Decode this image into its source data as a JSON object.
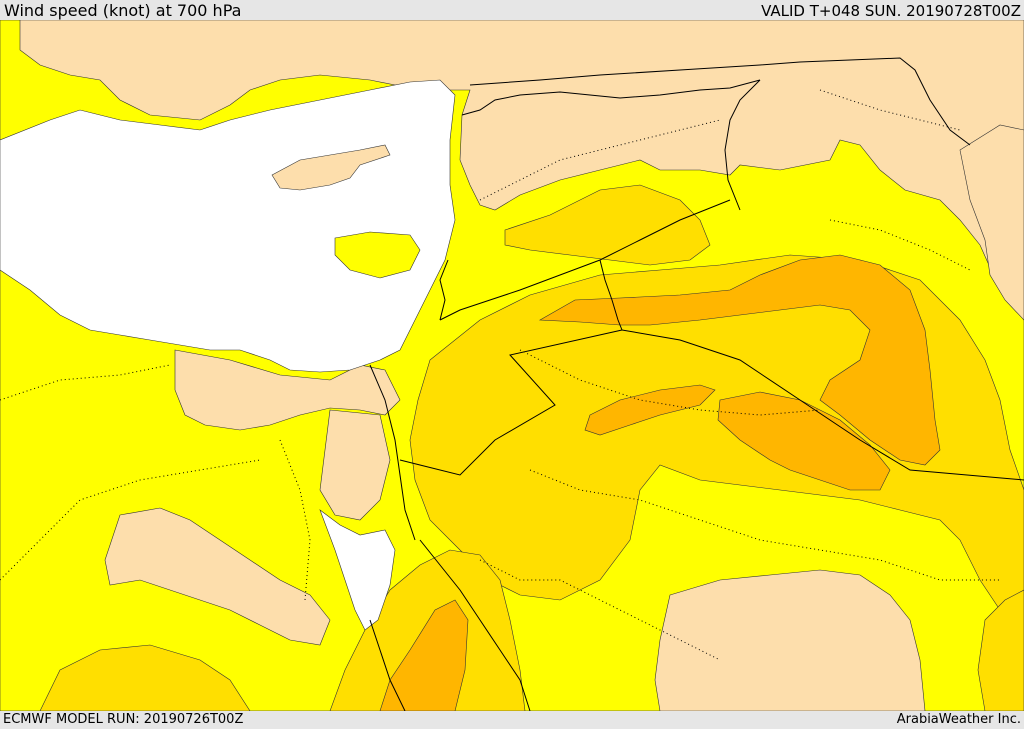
{
  "header": {
    "title": "Wind speed (knot) at 700 hPa",
    "valid": "VALID T+048 SUN. 20190728T00Z"
  },
  "footer": {
    "model_run": "ECMWF MODEL RUN: 20190726T00Z",
    "credit": "ArabiaWeather Inc."
  },
  "colors": {
    "sea": "#ffffff",
    "land_calm": "#fddeac",
    "band_1": "#ffff00",
    "band_2": "#ffdf00",
    "band_3": "#ffb600",
    "borders": "#000000",
    "frame": "#e6e6e6"
  }
}
